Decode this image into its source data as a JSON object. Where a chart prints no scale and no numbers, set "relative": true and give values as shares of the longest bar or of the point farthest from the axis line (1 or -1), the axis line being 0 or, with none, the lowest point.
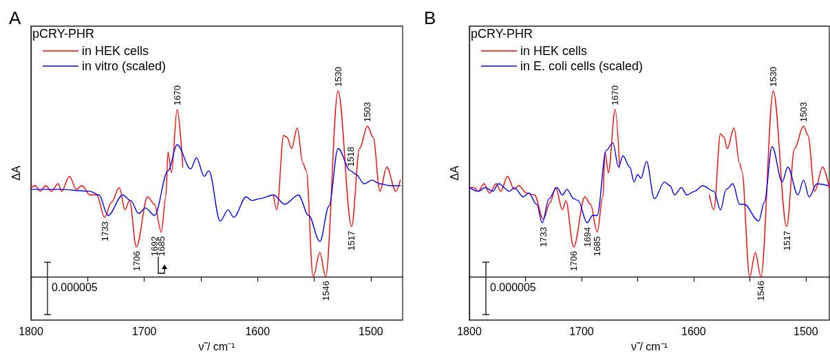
{
  "chart_data": [
    {
      "type": "line",
      "title": "A",
      "legend_title": "pCRY-PHR",
      "xlabel": "ν̃ / cm⁻¹",
      "ylabel": "ΔA",
      "relative": true,
      "legend": "top left",
      "grid": false,
      "marker": "none",
      "line_style": "solid",
      "xlim": [
        1800,
        1472
      ],
      "xticks": [
        1800,
        {
          "value": 1750,
          "label": null
        },
        1700,
        {
          "value": 1650,
          "label": null
        },
        1600,
        {
          "value": 1550,
          "label": null
        },
        1500
      ],
      "series": [
        {
          "name": "in HEK cells",
          "color": "#ff0000",
          "x": [
            1800,
            1796,
            1792,
            1787,
            1782,
            1776,
            1773,
            1766,
            1760,
            1755,
            1748,
            1742,
            1735,
            1729,
            1722,
            1717,
            1713,
            1707,
            1697,
            1691,
            1685,
            1681,
            1679,
            1676,
            1671,
            1666,
            1626,
            1586,
            1583,
            1577,
            1574,
            1570,
            1565,
            1560,
            1557,
            1551,
            1545,
            1540,
            1529,
            1517,
            1510,
            1503,
            1498,
            1492,
            1486,
            1478,
            1474
          ],
          "values": [
            0.48,
            0.49,
            0.46,
            0.49,
            0.46,
            0.5,
            0.46,
            0.54,
            0.47,
            0.49,
            0.44,
            0.44,
            0.32,
            0.4,
            0.48,
            0.36,
            0.41,
            0.16,
            0.43,
            0.39,
            0.24,
            0.43,
            0.67,
            0.56,
            0.9,
            0.59,
            null,
            0.44,
            0.36,
            0.76,
            0.75,
            0.69,
            0.8,
            0.61,
            0.57,
            0,
            0.13,
            0,
            1,
            0.27,
            0.69,
            0.81,
            0.75,
            0.46,
            0.59,
            0.46,
            0.52
          ]
        },
        {
          "name": "in vitro (scaled)",
          "color": "#0000ff",
          "x": [
            1800,
            1775,
            1748,
            1740,
            1732,
            1719,
            1712,
            1705,
            1699,
            1691,
            1679,
            1671,
            1659,
            1654,
            1647,
            1643,
            1633,
            1626,
            1621,
            1610,
            1605,
            1598,
            1586,
            1576,
            1564,
            1555,
            1545,
            1537,
            1529,
            1518,
            1513,
            1506,
            1499,
            1492,
            1483,
            1474
          ],
          "values": [
            0.47,
            0.47,
            0.46,
            0.44,
            0.33,
            0.44,
            0.41,
            0.34,
            0.37,
            0.33,
            0.57,
            0.71,
            0.58,
            0.64,
            0.54,
            0.57,
            0.3,
            0.36,
            0.32,
            0.43,
            0.41,
            0.42,
            0.44,
            0.39,
            0.44,
            0.33,
            0.19,
            0.38,
            0.69,
            0.57,
            0.55,
            0.5,
            0.52,
            0.5,
            0.49,
            0.49
          ]
        }
      ],
      "annotations": [
        {
          "text": "1670",
          "x": 1671,
          "y": 0.9
        },
        {
          "text": "1733",
          "x": 1735,
          "y": 0.32
        },
        {
          "text": "1706",
          "x": 1707,
          "y": 0.16
        },
        {
          "text": "1692",
          "x": 1691,
          "y": 0.33
        },
        {
          "text": "1685",
          "x": 1685,
          "y": 0.24
        },
        {
          "text": "1546",
          "x": 1540,
          "y": 0
        },
        {
          "text": "1530",
          "x": 1529,
          "y": 1
        },
        {
          "text": "1518",
          "x": 1518,
          "y": 0.57
        },
        {
          "text": "1517",
          "x": 1517,
          "y": 0.27
        },
        {
          "text": "1503",
          "x": 1503,
          "y": 0.81
        },
        "0.000005"
      ]
    },
    {
      "type": "line",
      "title": "B",
      "legend_title": "pCRY-PHR",
      "xlabel": "ν̃ / cm⁻¹",
      "ylabel": "ΔA",
      "relative": true,
      "legend": "top left",
      "grid": false,
      "marker": "none",
      "line_style": "solid",
      "xlim": [
        1800,
        1479
      ],
      "xticks": [
        1800,
        {
          "value": 1750,
          "label": null
        },
        1700,
        {
          "value": 1650,
          "label": null
        },
        1600,
        {
          "value": 1550,
          "label": null
        },
        1500
      ],
      "series": [
        {
          "name": "in HEK cells",
          "color": "#ff0000",
          "x": [
            1800,
            1796,
            1792,
            1787,
            1782,
            1776,
            1772,
            1766,
            1760,
            1756,
            1749,
            1742,
            1734,
            1728,
            1723,
            1717,
            1714,
            1707,
            1697,
            1692,
            1686,
            1681,
            1679,
            1676,
            1670,
            1666,
            1626,
            1586,
            1582,
            1576,
            1573,
            1570,
            1564,
            1559,
            1557,
            1550,
            1545,
            1540,
            1529,
            1517,
            1510,
            1502,
            1498,
            1492,
            1485,
            1479
          ],
          "values": [
            0.48,
            0.48,
            0.46,
            0.5,
            0.45,
            0.5,
            0.46,
            0.54,
            0.47,
            0.49,
            0.45,
            0.44,
            0.31,
            0.4,
            0.48,
            0.36,
            0.41,
            0.16,
            0.43,
            0.39,
            0.24,
            0.43,
            0.67,
            0.56,
            0.9,
            0.59,
            null,
            0.44,
            0.36,
            0.77,
            0.75,
            0.69,
            0.8,
            0.61,
            0.57,
            0,
            0.13,
            0,
            1,
            0.27,
            0.69,
            0.81,
            0.76,
            0.46,
            0.59,
            0.48
          ]
        },
        {
          "name": "in E. coli cells (scaled)",
          "color": "#0000ff",
          "x": [
            1800,
            1792,
            1786,
            1779,
            1774,
            1764,
            1760,
            1752,
            1747,
            1740,
            1735,
            1729,
            1722,
            1717,
            1713,
            1707,
            1703,
            1695,
            1690,
            1686,
            1678,
            1672,
            1667,
            1663,
            1657,
            1653,
            1650,
            1647,
            1642,
            1635,
            1626,
            1621,
            1617,
            1611,
            1606,
            1599,
            1592,
            1582,
            1576,
            1571,
            1565,
            1559,
            1555,
            1542,
            1537,
            1530,
            1521,
            1516,
            1507,
            1502,
            1497,
            1490,
            1480
          ],
          "values": [
            0.48,
            0.46,
            0.48,
            0.46,
            0.5,
            0.46,
            0.48,
            0.43,
            0.45,
            0.39,
            0.29,
            0.42,
            0.48,
            0.44,
            0.47,
            0.42,
            0.41,
            0.29,
            0.33,
            0.33,
            0.68,
            0.72,
            0.59,
            0.65,
            0.59,
            0.51,
            0.55,
            0.53,
            0.62,
            0.42,
            0.51,
            0.49,
            0.44,
            0.48,
            0.44,
            0.46,
            0.49,
            0.46,
            0.36,
            0.47,
            0.5,
            0.39,
            0.39,
            0.3,
            0.4,
            0.7,
            0.51,
            0.59,
            0.44,
            0.52,
            0.43,
            0.5,
            0.49
          ]
        }
      ],
      "annotations": [
        {
          "text": "1670",
          "x": 1670,
          "y": 0.9
        },
        {
          "text": "1733",
          "x": 1734,
          "y": 0.29
        },
        {
          "text": "1706",
          "x": 1707,
          "y": 0.16
        },
        {
          "text": "1694",
          "x": 1695,
          "y": 0.29
        },
        {
          "text": "1685",
          "x": 1686,
          "y": 0.24
        },
        {
          "text": "1546",
          "x": 1540,
          "y": 0
        },
        {
          "text": "1530",
          "x": 1529,
          "y": 1
        },
        {
          "text": "1517",
          "x": 1517,
          "y": 0.27
        },
        {
          "text": "1503",
          "x": 1502,
          "y": 0.81
        },
        "0.000005"
      ]
    }
  ]
}
